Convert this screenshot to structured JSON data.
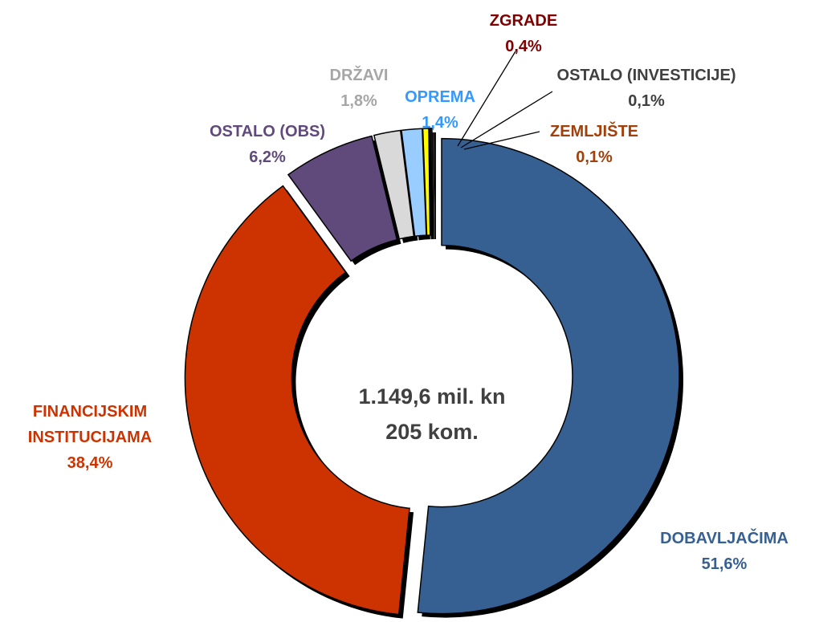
{
  "chart_data": {
    "type": "donut",
    "categories": [
      "DOBAVLJAČIMA",
      "FINANCIJSKIM INSTITUCIJAMA",
      "OSTALO (OBS)",
      "DRŽAVI",
      "OPREMA",
      "ZGRADE",
      "OSTALO (INVESTICIJE)",
      "ZEMLJIŠTE"
    ],
    "values": [
      51.6,
      38.4,
      6.2,
      1.8,
      1.4,
      0.4,
      0.1,
      0.1
    ],
    "value_labels": [
      "51,6%",
      "38,4%",
      "6,2%",
      "1,8%",
      "1,4%",
      "0,4%",
      "0,1%",
      "0,1%"
    ],
    "colors": [
      "#376092",
      "#cc3300",
      "#604a7b",
      "#d9d9d9",
      "#99ccff",
      "#ffff00",
      "#404040",
      "#c05000"
    ],
    "label_colors": [
      "#376092",
      "#cc3300",
      "#604a7b",
      "#a6a6a6",
      "#3399ff",
      "#7f0000",
      "#404040",
      "#a0400a"
    ],
    "center_text": [
      "1.149,6 mil. kn",
      "205 kom."
    ]
  }
}
